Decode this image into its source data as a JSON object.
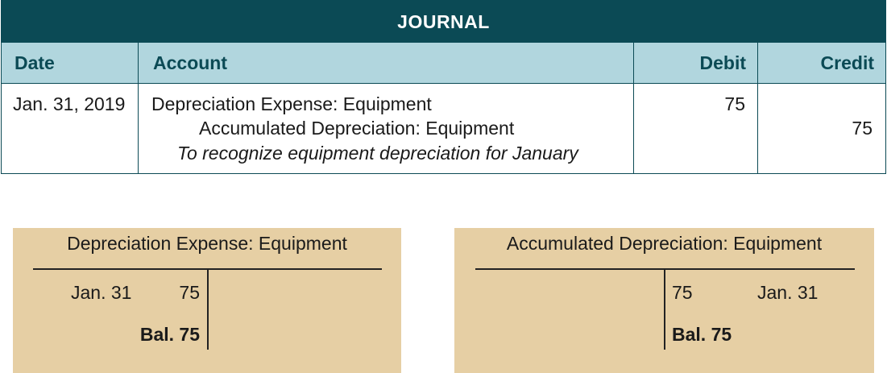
{
  "journal": {
    "title": "JOURNAL",
    "headers": {
      "date": "Date",
      "account": "Account",
      "debit": "Debit",
      "credit": "Credit"
    },
    "entry": {
      "date": "Jan. 31, 2019",
      "debit_account": "Depreciation Expense: Equipment",
      "credit_account": "Accumulated Depreciation: Equipment",
      "memo": "To recognize equipment depreciation for January",
      "debit": "75",
      "credit": "75"
    }
  },
  "t_accounts": [
    {
      "title": "Depreciation Expense: Equipment",
      "debit_date": "Jan. 31",
      "debit_amount": "75",
      "balance": "Bal. 75"
    },
    {
      "title": "Accumulated Depreciation: Equipment",
      "credit_amount": "75",
      "credit_date": "Jan. 31",
      "balance": "Bal. 75"
    }
  ],
  "colors": {
    "header_dark": "#0b4a55",
    "header_light": "#b1d6de",
    "t_account_bg": "#e6cfa4"
  }
}
